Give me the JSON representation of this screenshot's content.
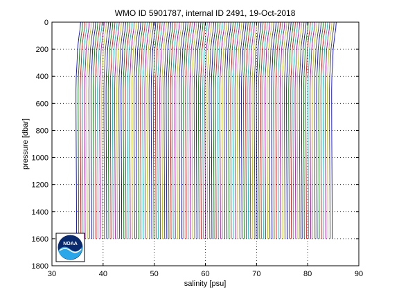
{
  "chart_data": {
    "type": "line",
    "title": "WMO ID 5901787, internal ID 2491, 19-Oct-2018",
    "xlabel": "salinity [psu]",
    "ylabel": "pressure [dbar]",
    "xlim": [
      30,
      90
    ],
    "ylim": [
      0,
      1800
    ],
    "y_reversed": true,
    "grid": true,
    "xticks": [
      "30",
      "40",
      "50",
      "60",
      "70",
      "80",
      "90"
    ],
    "yticks": [
      "0",
      "200",
      "400",
      "600",
      "800",
      "1000",
      "1200",
      "1400",
      "1600",
      "1800"
    ],
    "profile_count": 120,
    "profile_offset_step": 0.42,
    "base_profile": {
      "pressure": [
        0,
        50,
        100,
        150,
        200,
        300,
        400,
        500,
        600,
        800,
        1000,
        1200,
        1400,
        1600
      ],
      "salinity": [
        35.6,
        35.5,
        35.3,
        35.15,
        35.0,
        34.9,
        34.75,
        34.7,
        34.7,
        34.72,
        34.75,
        34.78,
        34.8,
        34.82
      ]
    },
    "series_colors": [
      "#0000ff",
      "#008000",
      "#ff0000",
      "#00bfbf",
      "#bf00bf",
      "#bfbf00",
      "#404040"
    ]
  },
  "logo": {
    "text": "NOAA",
    "colors": {
      "navy": "#0a2a6e",
      "sky": "#2aa7e8",
      "white": "#ffffff"
    }
  }
}
